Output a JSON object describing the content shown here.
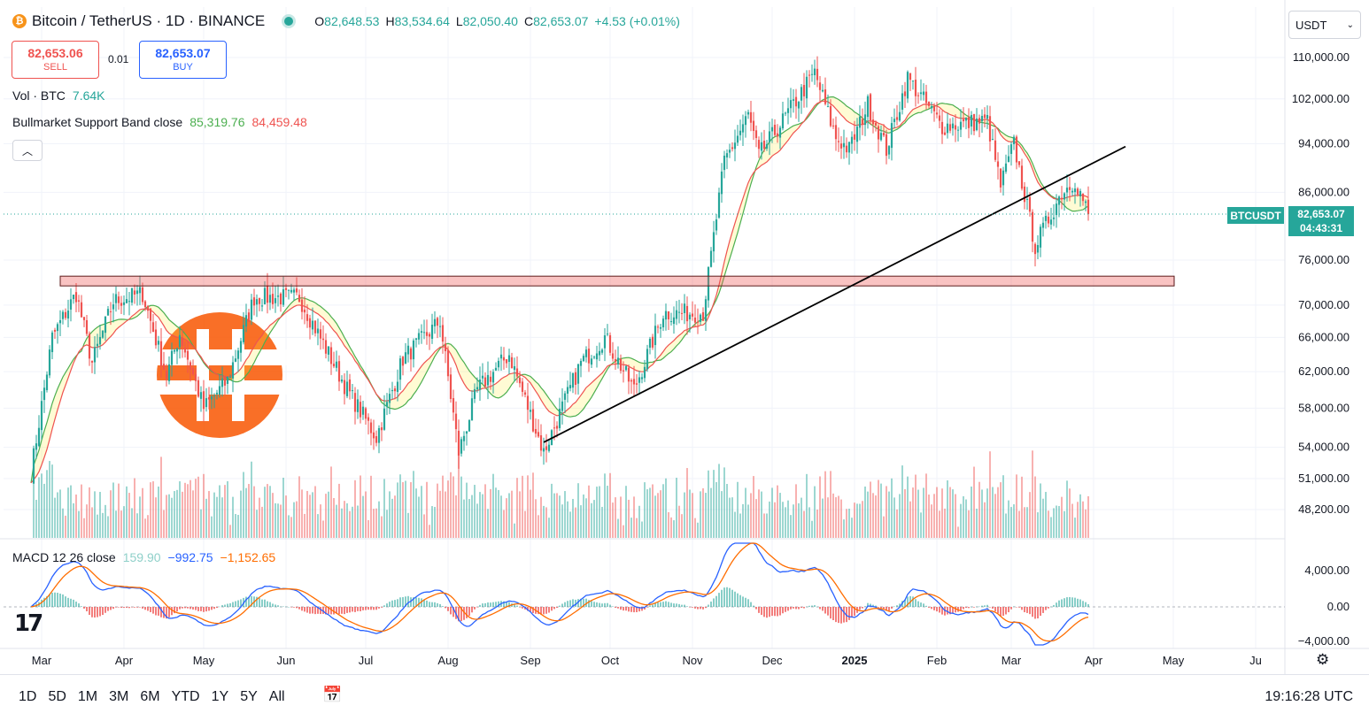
{
  "header": {
    "symbol_icon": "bitcoin-icon",
    "title": "Bitcoin / TetherUS · 1D · BINANCE",
    "ohlc": [
      {
        "k": "O",
        "v": "82,648.53"
      },
      {
        "k": "H",
        "v": "83,534.64"
      },
      {
        "k": "L",
        "v": "82,050.40"
      },
      {
        "k": "C",
        "v": "82,653.07"
      },
      {
        "k": "",
        "v": "+4.53 (+0.01%)"
      }
    ]
  },
  "trade": {
    "sell_price": "82,653.06",
    "sell_label": "SELL",
    "spread": "0.01",
    "buy_price": "82,653.07",
    "buy_label": "BUY"
  },
  "indicators": {
    "vol_label": "Vol · BTC",
    "vol_value": "7.64K",
    "band_label": "Bullmarket Support Band close",
    "band_v1": "85,319.76",
    "band_v2": "84,459.48",
    "macd_label": "MACD 12 26 close",
    "macd_hist": "159.90",
    "macd_line": "−992.75",
    "macd_signal": "−1,152.65"
  },
  "currency_select": "USDT",
  "last_price": {
    "symbol": "BTCUSDT",
    "price": "82,653.07",
    "countdown": "04:43:31"
  },
  "time_ranges": [
    "1D",
    "5D",
    "1M",
    "3M",
    "6M",
    "YTD",
    "1Y",
    "5Y",
    "All"
  ],
  "clock": "19:16:28 UTC",
  "colors": {
    "up": "#26a69a",
    "down": "#ef5350",
    "sma": "#4caf50",
    "ema": "#ef5350",
    "macd": "#2962ff",
    "signal": "#ff6d00",
    "watermark": "#f96315"
  },
  "chart_data": {
    "type": "candlestick",
    "scale": "log",
    "x_ticks": [
      "Mar",
      "Apr",
      "May",
      "Jun",
      "Jul",
      "Aug",
      "Sep",
      "Oct",
      "Nov",
      "Dec",
      "2025",
      "Feb",
      "Mar",
      "Apr",
      "May",
      "Ju"
    ],
    "y_ticks": [
      110000,
      102000,
      94000,
      86000,
      76000,
      70000,
      66000,
      62000,
      58000,
      54000,
      51000,
      48200
    ],
    "macd_ticks": [
      "4,000.00",
      "0.00",
      "−4,000.00"
    ],
    "price_path": [
      [
        "2024-02-26",
        51500
      ],
      [
        "2024-03-05",
        66000
      ],
      [
        "2024-03-14",
        71500
      ],
      [
        "2024-03-20",
        63000
      ],
      [
        "2024-03-28",
        70500
      ],
      [
        "2024-04-08",
        71500
      ],
      [
        "2024-04-17",
        61500
      ],
      [
        "2024-04-22",
        66500
      ],
      [
        "2024-05-01",
        58000
      ],
      [
        "2024-05-10",
        61000
      ],
      [
        "2024-05-20",
        71000
      ],
      [
        "2024-06-06",
        71000
      ],
      [
        "2024-06-24",
        60000
      ],
      [
        "2024-07-05",
        55000
      ],
      [
        "2024-07-15",
        63500
      ],
      [
        "2024-07-29",
        68000
      ],
      [
        "2024-08-05",
        53500
      ],
      [
        "2024-08-12",
        60000
      ],
      [
        "2024-08-24",
        64000
      ],
      [
        "2024-09-06",
        53500
      ],
      [
        "2024-09-20",
        63000
      ],
      [
        "2024-09-29",
        66000
      ],
      [
        "2024-10-10",
        60000
      ],
      [
        "2024-10-21",
        69000
      ],
      [
        "2024-11-05",
        69000
      ],
      [
        "2024-11-13",
        91000
      ],
      [
        "2024-11-22",
        99000
      ],
      [
        "2024-11-26",
        92000
      ],
      [
        "2024-12-05",
        98000
      ],
      [
        "2024-12-17",
        107000
      ],
      [
        "2024-12-25",
        95000
      ],
      [
        "2024-12-30",
        93000
      ],
      [
        "2025-01-06",
        101000
      ],
      [
        "2025-01-13",
        93000
      ],
      [
        "2025-01-21",
        106000
      ],
      [
        "2025-02-03",
        97000
      ],
      [
        "2025-02-20",
        98000
      ],
      [
        "2025-02-25",
        87000
      ],
      [
        "2025-03-02",
        94000
      ],
      [
        "2025-03-10",
        78000
      ],
      [
        "2025-03-20",
        86000
      ],
      [
        "2025-03-25",
        88000
      ],
      [
        "2025-03-30",
        82653
      ]
    ],
    "resistance_band": [
      72500,
      73800
    ],
    "trendline": [
      [
        "2024-09-06",
        54500
      ],
      [
        "2025-04-13",
        93500
      ]
    ]
  }
}
